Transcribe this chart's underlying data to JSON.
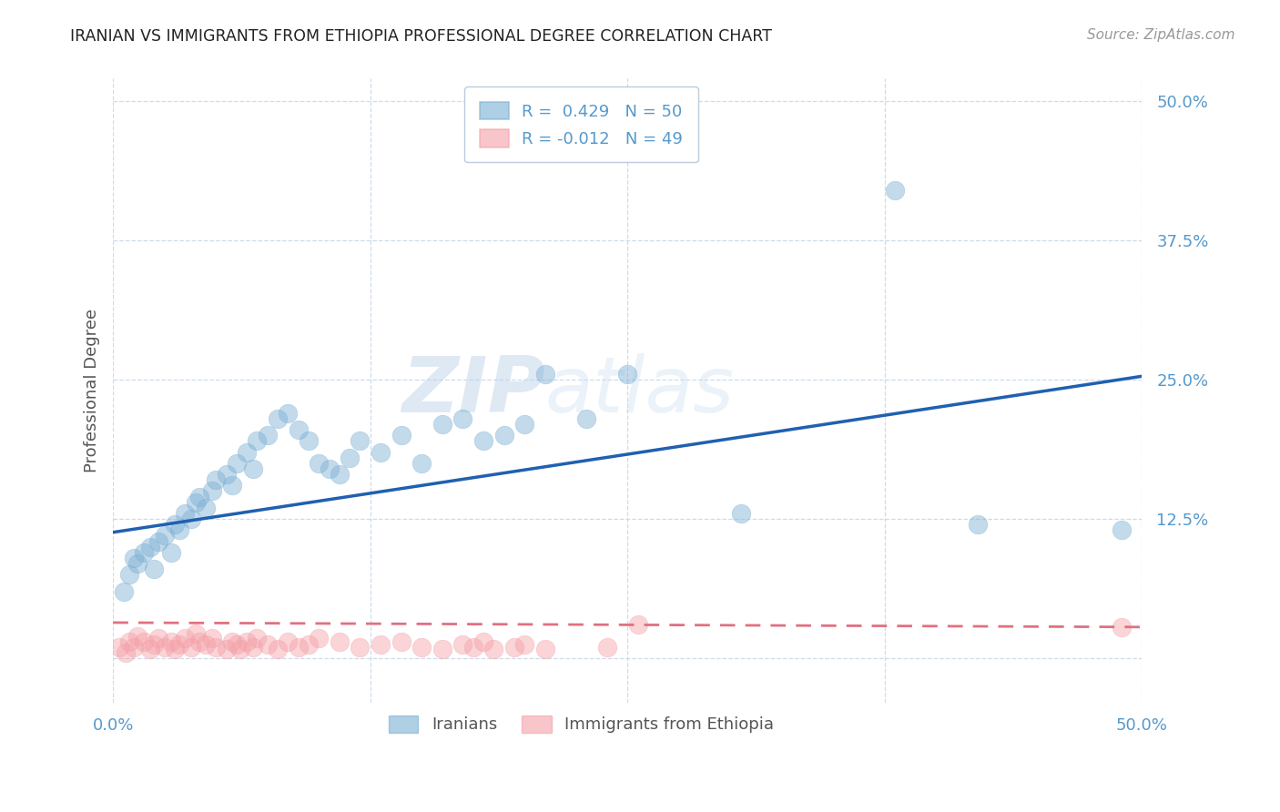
{
  "title": "IRANIAN VS IMMIGRANTS FROM ETHIOPIA PROFESSIONAL DEGREE CORRELATION CHART",
  "source": "Source: ZipAtlas.com",
  "ylabel": "Professional Degree",
  "x_min": 0.0,
  "x_max": 0.5,
  "y_min": -0.04,
  "y_max": 0.52,
  "x_ticks": [
    0.0,
    0.125,
    0.25,
    0.375,
    0.5
  ],
  "x_tick_labels": [
    "0.0%",
    "",
    "",
    "",
    "50.0%"
  ],
  "y_ticks": [
    0.0,
    0.125,
    0.25,
    0.375,
    0.5
  ],
  "y_tick_labels": [
    "",
    "12.5%",
    "25.0%",
    "37.5%",
    "50.0%"
  ],
  "iranian_color": "#7BAFD4",
  "ethiopia_color": "#F4A0A8",
  "line_color_iranian": "#2060B0",
  "line_color_ethiopia": "#E07080",
  "watermark_part1": "ZIP",
  "watermark_part2": "atlas",
  "legend_r_iranian": "R =  0.429",
  "legend_n_iranian": "N = 50",
  "legend_r_ethiopia": "R = -0.012",
  "legend_n_ethiopia": "N = 49",
  "iranian_line_x0": 0.0,
  "iranian_line_y0": 0.113,
  "iranian_line_x1": 0.5,
  "iranian_line_y1": 0.253,
  "ethiopia_line_x0": 0.0,
  "ethiopia_line_y0": 0.032,
  "ethiopia_line_x1": 0.5,
  "ethiopia_line_y1": 0.028,
  "iranians_scatter_x": [
    0.005,
    0.008,
    0.01,
    0.012,
    0.015,
    0.018,
    0.02,
    0.022,
    0.025,
    0.028,
    0.03,
    0.032,
    0.035,
    0.038,
    0.04,
    0.042,
    0.045,
    0.048,
    0.05,
    0.055,
    0.058,
    0.06,
    0.065,
    0.068,
    0.07,
    0.075,
    0.08,
    0.085,
    0.09,
    0.095,
    0.1,
    0.105,
    0.11,
    0.115,
    0.12,
    0.13,
    0.14,
    0.15,
    0.16,
    0.17,
    0.18,
    0.19,
    0.2,
    0.21,
    0.23,
    0.25,
    0.305,
    0.38,
    0.42,
    0.49
  ],
  "iranians_scatter_y": [
    0.06,
    0.075,
    0.09,
    0.085,
    0.095,
    0.1,
    0.08,
    0.105,
    0.11,
    0.095,
    0.12,
    0.115,
    0.13,
    0.125,
    0.14,
    0.145,
    0.135,
    0.15,
    0.16,
    0.165,
    0.155,
    0.175,
    0.185,
    0.17,
    0.195,
    0.2,
    0.215,
    0.22,
    0.205,
    0.195,
    0.175,
    0.17,
    0.165,
    0.18,
    0.195,
    0.185,
    0.2,
    0.175,
    0.21,
    0.215,
    0.195,
    0.2,
    0.21,
    0.255,
    0.215,
    0.255,
    0.13,
    0.42,
    0.12,
    0.115
  ],
  "ethiopia_scatter_x": [
    0.003,
    0.006,
    0.008,
    0.01,
    0.012,
    0.015,
    0.018,
    0.02,
    0.022,
    0.025,
    0.028,
    0.03,
    0.032,
    0.035,
    0.038,
    0.04,
    0.042,
    0.045,
    0.048,
    0.05,
    0.055,
    0.058,
    0.06,
    0.062,
    0.065,
    0.068,
    0.07,
    0.075,
    0.08,
    0.085,
    0.09,
    0.095,
    0.1,
    0.11,
    0.12,
    0.13,
    0.14,
    0.15,
    0.16,
    0.17,
    0.175,
    0.18,
    0.185,
    0.195,
    0.2,
    0.21,
    0.24,
    0.255,
    0.49
  ],
  "ethiopia_scatter_y": [
    0.01,
    0.005,
    0.015,
    0.01,
    0.02,
    0.015,
    0.008,
    0.012,
    0.018,
    0.01,
    0.015,
    0.008,
    0.012,
    0.018,
    0.01,
    0.022,
    0.015,
    0.012,
    0.018,
    0.01,
    0.008,
    0.015,
    0.012,
    0.008,
    0.015,
    0.01,
    0.018,
    0.012,
    0.008,
    0.015,
    0.01,
    0.012,
    0.018,
    0.015,
    0.01,
    0.012,
    0.015,
    0.01,
    0.008,
    0.012,
    0.01,
    0.015,
    0.008,
    0.01,
    0.012,
    0.008,
    0.01,
    0.03,
    0.028
  ]
}
